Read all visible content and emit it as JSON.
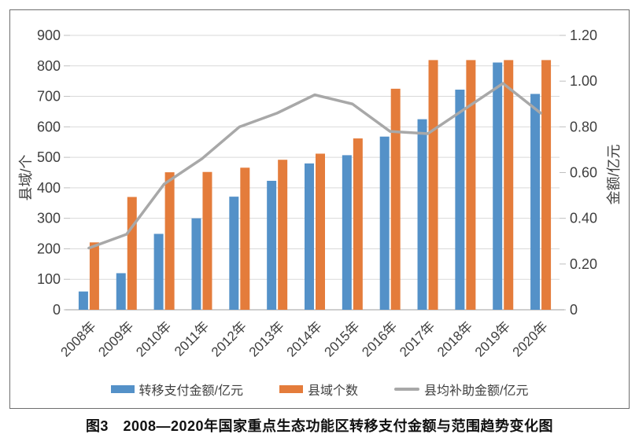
{
  "figure": {
    "caption": "图3　2008—2020年国家重点生态功能区转移支付金额与范围趋势变化图"
  },
  "chart_data": {
    "type": "bar",
    "subtype": "grouped-bars-with-line-dual-axis",
    "categories": [
      "2008年",
      "2009年",
      "2010年",
      "2011年",
      "2012年",
      "2013年",
      "2014年",
      "2015年",
      "2016年",
      "2017年",
      "2018年",
      "2019年",
      "2020年"
    ],
    "series": [
      {
        "name": "转移支付金额/亿元",
        "type": "bar",
        "axis": "left",
        "color": "#5491C8",
        "values": [
          60,
          120,
          249,
          300,
          371,
          423,
          480,
          507,
          568,
          625,
          722,
          811,
          708
        ]
      },
      {
        "name": "县域个数",
        "type": "bar",
        "axis": "left",
        "color": "#E47C3B",
        "values": [
          221,
          370,
          451,
          452,
          466,
          492,
          512,
          562,
          725,
          819,
          819,
          819,
          819
        ]
      },
      {
        "name": "县均补助金额/亿元",
        "type": "line",
        "axis": "right",
        "color": "#A8A8A8",
        "values": [
          0.27,
          0.33,
          0.55,
          0.66,
          0.8,
          0.86,
          0.94,
          0.9,
          0.78,
          0.77,
          0.88,
          0.99,
          0.86
        ]
      }
    ],
    "left_axis": {
      "title": "县域/个",
      "min": 0,
      "max": 900,
      "ticks": [
        900,
        800,
        700,
        600,
        500,
        400,
        300,
        200,
        100,
        0
      ]
    },
    "right_axis": {
      "title": "金额/亿元",
      "min": 0,
      "max": 1.2,
      "ticks": [
        "1.20",
        "1.00",
        "0.80",
        "0.60",
        "0.40",
        "0.20",
        "0"
      ]
    },
    "legend_position": "bottom",
    "grid": true,
    "colors": {
      "gridline": "#D9D9D9",
      "axis_line": "#BFBFBF",
      "tick_text": "#3F3F3F",
      "frame_border": "#6e6e6e"
    }
  }
}
